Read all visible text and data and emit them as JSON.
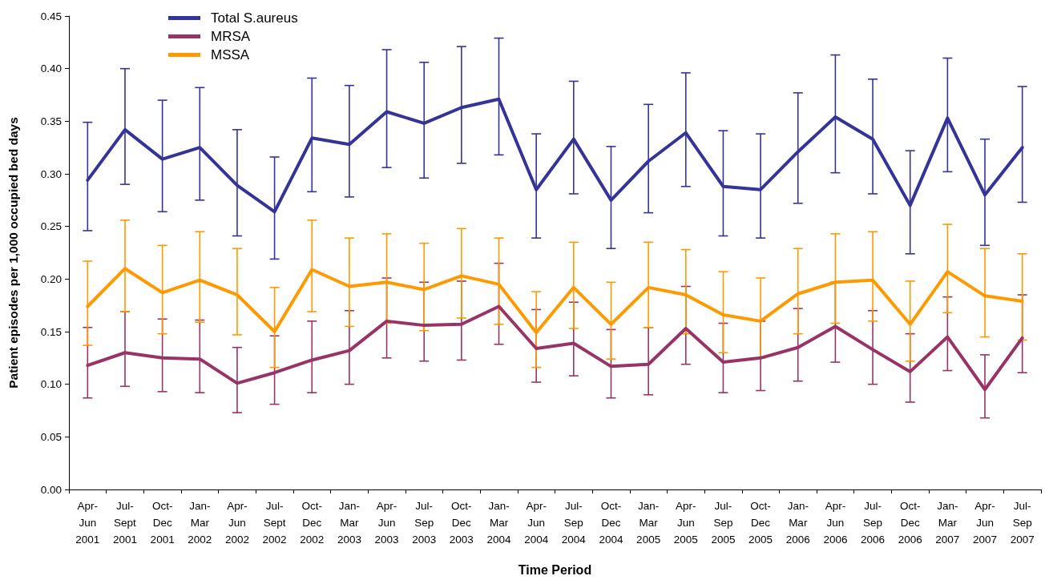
{
  "chart_data": {
    "type": "line",
    "xlabel": "Time Period",
    "ylabel": "Patient episodes per 1,000 occupied bed days",
    "categories": [
      "Apr-Jun 2001",
      "Jul-Sept 2001",
      "Oct-Dec 2001",
      "Jan-Mar 2002",
      "Apr-Jun 2002",
      "Jul-Sept 2002",
      "Oct-Dec 2002",
      "Jan-Mar 2003",
      "Apr-Jun 2003",
      "Jul-Sep 2003",
      "Oct-Dec 2003",
      "Jan-Mar 2004",
      "Apr-Jun 2004",
      "Jul-Sep 2004",
      "Oct-Dec 2004",
      "Jan-Mar 2005",
      "Apr-Jun 2005",
      "Jul-Sep 2005",
      "Oct-Dec 2005",
      "Jan-Mar 2006",
      "Apr-Jun 2006",
      "Jul-Sep 2006",
      "Oct-Dec 2006",
      "Jan-Mar 2007",
      "Apr-Jun 2007",
      "Jul-Sep 2007"
    ],
    "series": [
      {
        "name": "Total S.aureus",
        "color": "#333399",
        "values": [
          0.294,
          0.342,
          0.314,
          0.325,
          0.289,
          0.264,
          0.334,
          0.328,
          0.359,
          0.348,
          0.363,
          0.371,
          0.285,
          0.333,
          0.275,
          0.312,
          0.339,
          0.288,
          0.285,
          0.321,
          0.354,
          0.333,
          0.27,
          0.353,
          0.28,
          0.325
        ],
        "errors": [
          [
            0.246,
            0.349
          ],
          [
            0.29,
            0.4
          ],
          [
            0.264,
            0.37
          ],
          [
            0.275,
            0.382
          ],
          [
            0.241,
            0.342
          ],
          [
            0.219,
            0.316
          ],
          [
            0.283,
            0.391
          ],
          [
            0.278,
            0.384
          ],
          [
            0.306,
            0.418
          ],
          [
            0.296,
            0.406
          ],
          [
            0.31,
            0.421
          ],
          [
            0.318,
            0.429
          ],
          [
            0.239,
            0.338
          ],
          [
            0.281,
            0.388
          ],
          [
            0.229,
            0.326
          ],
          [
            0.263,
            0.366
          ],
          [
            0.288,
            0.396
          ],
          [
            0.241,
            0.341
          ],
          [
            0.239,
            0.338
          ],
          [
            0.272,
            0.377
          ],
          [
            0.301,
            0.413
          ],
          [
            0.281,
            0.39
          ],
          [
            0.224,
            0.322
          ],
          [
            0.302,
            0.41
          ],
          [
            0.232,
            0.333
          ],
          [
            0.273,
            0.383
          ]
        ]
      },
      {
        "name": "MRSA",
        "color": "#993366",
        "values": [
          0.118,
          0.13,
          0.125,
          0.124,
          0.101,
          0.111,
          0.123,
          0.132,
          0.16,
          0.156,
          0.157,
          0.174,
          0.134,
          0.139,
          0.117,
          0.119,
          0.153,
          0.121,
          0.125,
          0.135,
          0.155,
          0.133,
          0.112,
          0.145,
          0.095,
          0.144
        ],
        "errors": [
          [
            0.087,
            0.154
          ],
          [
            0.098,
            0.169
          ],
          [
            0.093,
            0.162
          ],
          [
            0.092,
            0.161
          ],
          [
            0.073,
            0.135
          ],
          [
            0.081,
            0.146
          ],
          [
            0.092,
            0.16
          ],
          [
            0.1,
            0.17
          ],
          [
            0.125,
            0.201
          ],
          [
            0.122,
            0.197
          ],
          [
            0.123,
            0.198
          ],
          [
            0.138,
            0.215
          ],
          [
            0.102,
            0.171
          ],
          [
            0.108,
            0.178
          ],
          [
            0.087,
            0.152
          ],
          [
            0.09,
            0.154
          ],
          [
            0.119,
            0.193
          ],
          [
            0.092,
            0.158
          ],
          [
            0.094,
            0.16
          ],
          [
            0.103,
            0.172
          ],
          [
            0.121,
            0.197
          ],
          [
            0.1,
            0.17
          ],
          [
            0.083,
            0.148
          ],
          [
            0.113,
            0.183
          ],
          [
            0.068,
            0.128
          ],
          [
            0.111,
            0.185
          ]
        ]
      },
      {
        "name": "MSSA",
        "color": "#ff9900",
        "values": [
          0.174,
          0.21,
          0.187,
          0.199,
          0.185,
          0.15,
          0.209,
          0.193,
          0.197,
          0.19,
          0.203,
          0.195,
          0.149,
          0.192,
          0.157,
          0.192,
          0.185,
          0.166,
          0.16,
          0.186,
          0.197,
          0.199,
          0.157,
          0.207,
          0.184,
          0.179
        ],
        "errors": [
          [
            0.137,
            0.217
          ],
          [
            0.169,
            0.256
          ],
          [
            0.148,
            0.232
          ],
          [
            0.159,
            0.245
          ],
          [
            0.147,
            0.229
          ],
          [
            0.116,
            0.192
          ],
          [
            0.169,
            0.256
          ],
          [
            0.155,
            0.239
          ],
          [
            0.158,
            0.243
          ],
          [
            0.151,
            0.234
          ],
          [
            0.163,
            0.248
          ],
          [
            0.157,
            0.239
          ],
          [
            0.116,
            0.188
          ],
          [
            0.153,
            0.235
          ],
          [
            0.124,
            0.197
          ],
          [
            0.154,
            0.235
          ],
          [
            0.148,
            0.228
          ],
          [
            0.13,
            0.207
          ],
          [
            0.125,
            0.201
          ],
          [
            0.148,
            0.229
          ],
          [
            0.158,
            0.243
          ],
          [
            0.16,
            0.245
          ],
          [
            0.122,
            0.198
          ],
          [
            0.168,
            0.252
          ],
          [
            0.145,
            0.229
          ],
          [
            0.142,
            0.224
          ]
        ]
      }
    ],
    "ylim": [
      0,
      0.45
    ],
    "yticks": [
      {
        "value": 0,
        "label": "0.00"
      },
      {
        "value": 0.05,
        "label": "0.05"
      },
      {
        "value": 0.1,
        "label": "0.10"
      },
      {
        "value": 0.15,
        "label": "0.15"
      },
      {
        "value": 0.2,
        "label": "0.20"
      },
      {
        "value": 0.25,
        "label": "0.25"
      },
      {
        "value": 0.3,
        "label": "0.30"
      },
      {
        "value": 0.35,
        "label": "0.35"
      },
      {
        "value": 0.4,
        "label": "0.40"
      },
      {
        "value": 0.45,
        "label": "0.45"
      }
    ],
    "grid": false,
    "legend": "top left",
    "marker": "none"
  }
}
